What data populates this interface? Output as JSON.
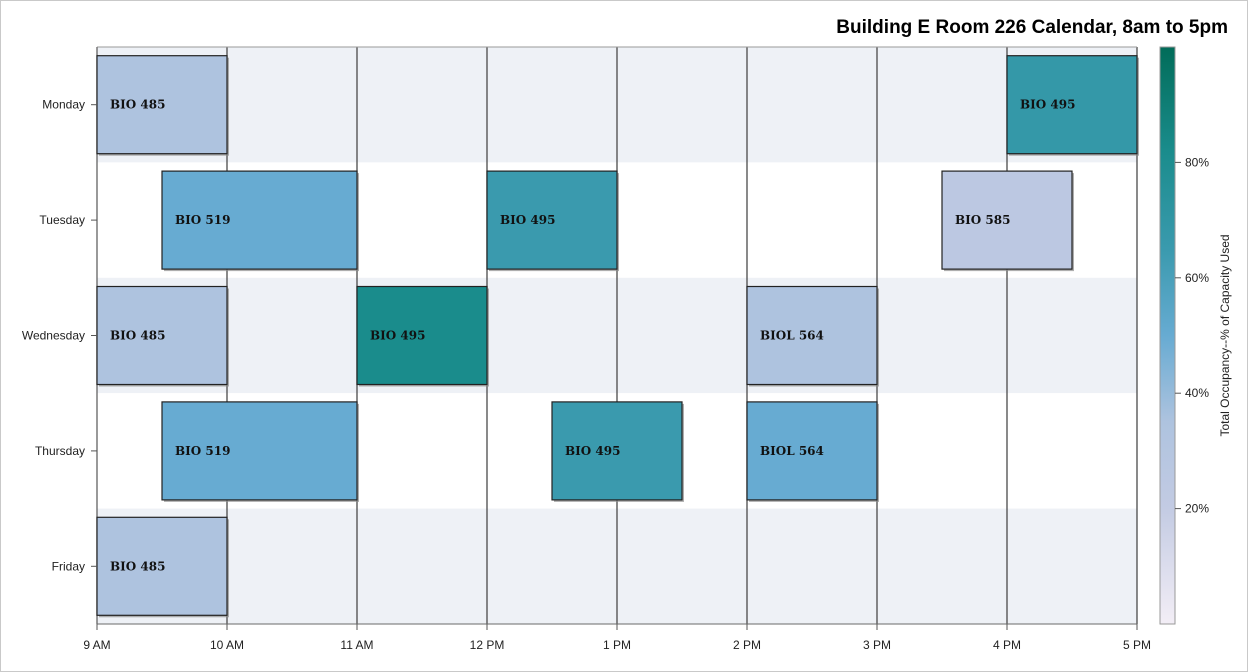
{
  "chart_data": {
    "type": "bar",
    "orientation": "horizontal-gantt",
    "title": "Building E Room 226 Calendar, 8am to 5pm",
    "x_ticks": [
      "9 AM",
      "10 AM",
      "11 AM",
      "12 PM",
      "1 PM",
      "2 PM",
      "3 PM",
      "4 PM",
      "5 PM"
    ],
    "xlim": [
      9,
      17
    ],
    "categories": [
      "Monday",
      "Tuesday",
      "Wednesday",
      "Thursday",
      "Friday"
    ],
    "grid": true,
    "alternating_row_bands": true,
    "events": [
      {
        "day": "Monday",
        "label": "BIO 485",
        "start": 9,
        "end": 10,
        "occupancy": 35
      },
      {
        "day": "Monday",
        "label": "BIO 495",
        "start": 16,
        "end": 17,
        "occupancy": 68
      },
      {
        "day": "Tuesday",
        "label": "BIO 519",
        "start": 9.5,
        "end": 11,
        "occupancy": 50
      },
      {
        "day": "Tuesday",
        "label": "BIO 495",
        "start": 12,
        "end": 13,
        "occupancy": 65
      },
      {
        "day": "Tuesday",
        "label": "BIO 585",
        "start": 15.5,
        "end": 16.5,
        "occupancy": 25
      },
      {
        "day": "Wednesday",
        "label": "BIO 485",
        "start": 9,
        "end": 10,
        "occupancy": 35
      },
      {
        "day": "Wednesday",
        "label": "BIO 495",
        "start": 11,
        "end": 12,
        "occupancy": 82
      },
      {
        "day": "Wednesday",
        "label": "BIOL 564",
        "start": 14,
        "end": 15,
        "occupancy": 35
      },
      {
        "day": "Thursday",
        "label": "BIO 519",
        "start": 9.5,
        "end": 11,
        "occupancy": 50
      },
      {
        "day": "Thursday",
        "label": "BIO 495",
        "start": 12.5,
        "end": 13.5,
        "occupancy": 65
      },
      {
        "day": "Thursday",
        "label": "BIOL 564",
        "start": 14,
        "end": 15,
        "occupancy": 50
      },
      {
        "day": "Friday",
        "label": "BIO 485",
        "start": 9,
        "end": 10,
        "occupancy": 35
      }
    ],
    "colorscale": {
      "title": "Total Occupancy--% of Capacity Used",
      "range": [
        0,
        100
      ],
      "ticks": [
        {
          "value": 20,
          "label": "20%"
        },
        {
          "value": 40,
          "label": "40%"
        },
        {
          "value": 60,
          "label": "60%"
        },
        {
          "value": 80,
          "label": "80%"
        }
      ],
      "stops": [
        {
          "value": 0,
          "color": "#f3eef6"
        },
        {
          "value": 20,
          "color": "#c3cbe3"
        },
        {
          "value": 35,
          "color": "#aec3df"
        },
        {
          "value": 50,
          "color": "#67abd2"
        },
        {
          "value": 65,
          "color": "#3a9aae"
        },
        {
          "value": 82,
          "color": "#1a8c8c"
        },
        {
          "value": 100,
          "color": "#016c59"
        }
      ]
    }
  }
}
